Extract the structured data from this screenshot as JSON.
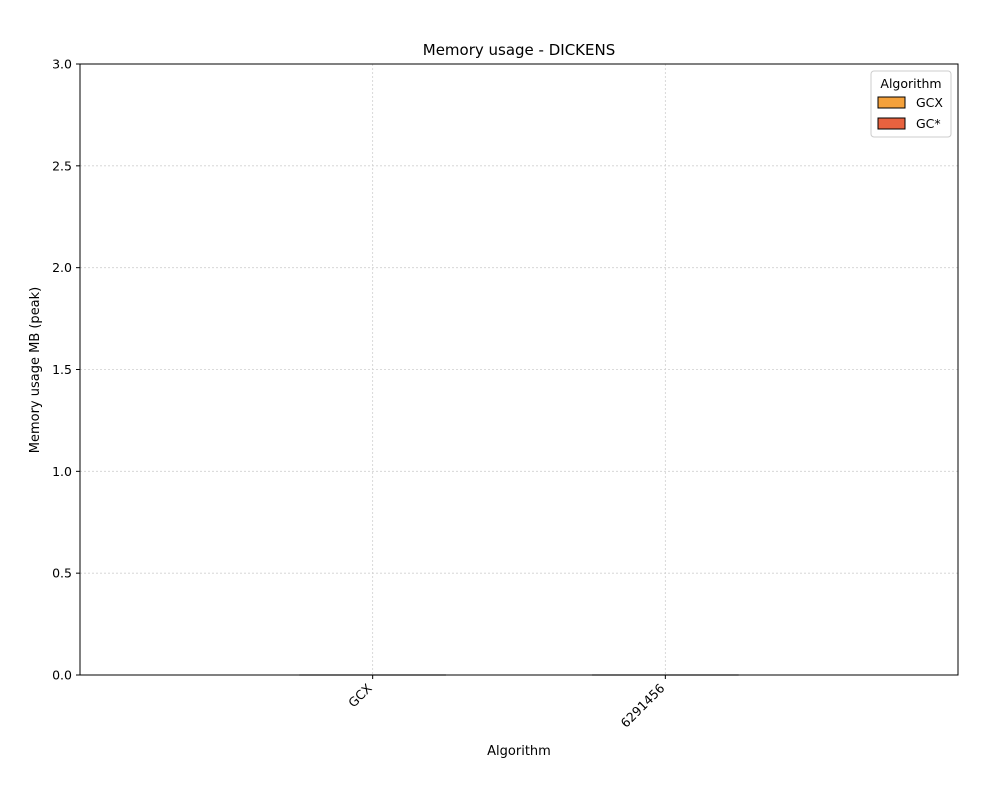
{
  "chart_data": {
    "type": "bar",
    "title": "Memory usage -  DICKENS",
    "xlabel": "Algorithm",
    "ylabel": "Memory usage MB (peak)",
    "categories": [
      "GCX",
      "6291456"
    ],
    "series": [
      {
        "name": "GCX",
        "color": "#f4a13b",
        "values": [
          0,
          null
        ]
      },
      {
        "name": "GC*",
        "color": "#e8623f",
        "values": [
          null,
          0
        ]
      }
    ],
    "ylim": [
      0,
      3.0
    ],
    "yticks": [
      "0.0",
      "0.5",
      "1.0",
      "1.5",
      "2.0",
      "2.5",
      "3.0"
    ],
    "grid": true,
    "legend": {
      "title": "Algorithm",
      "placement": "top-right"
    }
  }
}
